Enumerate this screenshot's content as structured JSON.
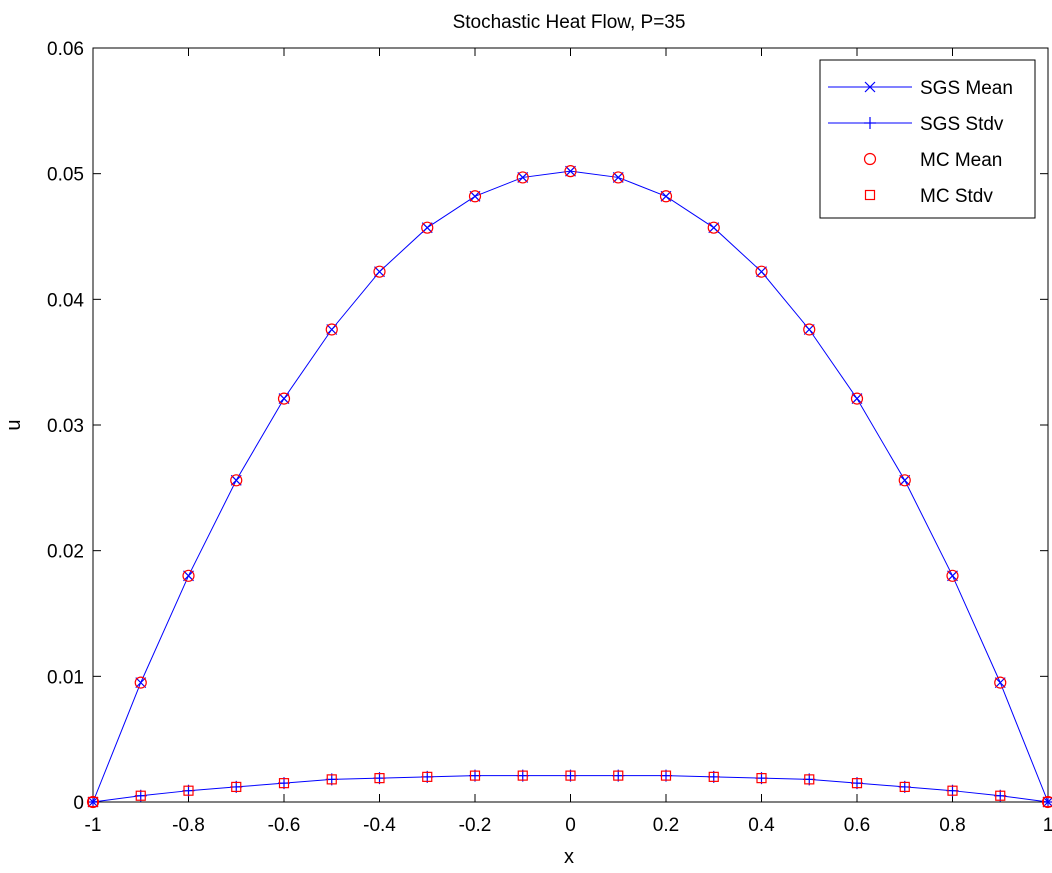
{
  "chart_data": {
    "type": "line",
    "title": "Stochastic Heat Flow, P=35",
    "xlabel": "x",
    "ylabel": "u",
    "xlim": [
      -1,
      1
    ],
    "ylim": [
      0,
      0.06
    ],
    "xticks": [
      "-1",
      "-0.8",
      "-0.6",
      "-0.4",
      "-0.2",
      "0",
      "0.2",
      "0.4",
      "0.6",
      "0.8",
      "1"
    ],
    "yticks": [
      "0",
      "0.01",
      "0.02",
      "0.03",
      "0.04",
      "0.05",
      "0.06"
    ],
    "grid": false,
    "legend_position": "top-right",
    "x": [
      -1,
      -0.9,
      -0.8,
      -0.7,
      -0.6,
      -0.5,
      -0.4,
      -0.3,
      -0.2,
      -0.1,
      0,
      0.1,
      0.2,
      0.3,
      0.4,
      0.5,
      0.6,
      0.7,
      0.8,
      0.9,
      1
    ],
    "series": [
      {
        "name": "SGS Mean",
        "marker": "x",
        "line": true,
        "color": "#0000ff",
        "values": [
          0,
          0.0095,
          0.018,
          0.0256,
          0.0321,
          0.0376,
          0.0422,
          0.0457,
          0.0482,
          0.0497,
          0.0502,
          0.0497,
          0.0482,
          0.0457,
          0.0422,
          0.0376,
          0.0321,
          0.0256,
          0.018,
          0.0095,
          0
        ]
      },
      {
        "name": "SGS Stdv",
        "marker": "+",
        "line": true,
        "color": "#0000ff",
        "values": [
          0,
          0.0005,
          0.0009,
          0.0012,
          0.0015,
          0.0018,
          0.0019,
          0.002,
          0.0021,
          0.0021,
          0.0021,
          0.0021,
          0.0021,
          0.002,
          0.0019,
          0.0018,
          0.0015,
          0.0012,
          0.0009,
          0.0005,
          0
        ]
      },
      {
        "name": "MC Mean",
        "marker": "circle",
        "line": false,
        "color": "#ff0000",
        "values": [
          0,
          0.0095,
          0.018,
          0.0256,
          0.0321,
          0.0376,
          0.0422,
          0.0457,
          0.0482,
          0.0497,
          0.0502,
          0.0497,
          0.0482,
          0.0457,
          0.0422,
          0.0376,
          0.0321,
          0.0256,
          0.018,
          0.0095,
          0
        ]
      },
      {
        "name": "MC Stdv",
        "marker": "square",
        "line": false,
        "color": "#ff0000",
        "values": [
          0,
          0.0005,
          0.0009,
          0.0012,
          0.0015,
          0.0018,
          0.0019,
          0.002,
          0.0021,
          0.0021,
          0.0021,
          0.0021,
          0.0021,
          0.002,
          0.0019,
          0.0018,
          0.0015,
          0.0012,
          0.0009,
          0.0005,
          0
        ]
      }
    ]
  }
}
